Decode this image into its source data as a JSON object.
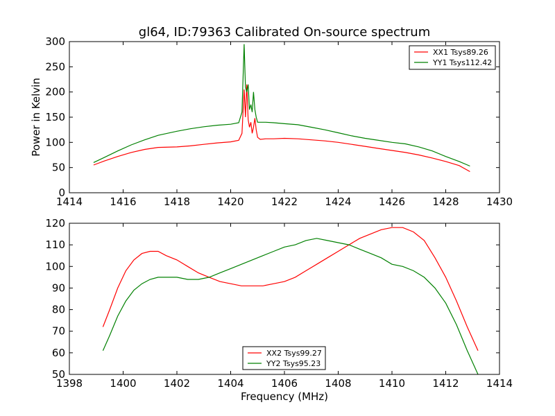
{
  "chart_data": [
    {
      "type": "line",
      "title": "gl64, ID:79363 Calibrated On-source spectrum",
      "xlabel": "",
      "ylabel": "Power in Kelvin",
      "xlim": [
        1414,
        1430
      ],
      "ylim": [
        0,
        300
      ],
      "xticks": [
        "1414",
        "1416",
        "1418",
        "1420",
        "1422",
        "1424",
        "1426",
        "1428",
        "1430"
      ],
      "yticks": [
        "0",
        "50",
        "100",
        "150",
        "200",
        "250",
        "300"
      ],
      "grid": false,
      "legend_position": "top-right",
      "series": [
        {
          "name": "XX1 Tsys89.26",
          "color": "#ff0000",
          "x": [
            1414.9,
            1415.3,
            1415.8,
            1416.3,
            1416.8,
            1417.3,
            1418.0,
            1418.5,
            1419.0,
            1419.5,
            1420.0,
            1420.3,
            1420.42,
            1420.5,
            1420.55,
            1420.6,
            1420.65,
            1420.7,
            1420.75,
            1420.8,
            1420.85,
            1420.9,
            1420.95,
            1421.0,
            1421.1,
            1421.3,
            1421.6,
            1422.0,
            1422.5,
            1423.0,
            1423.5,
            1424.0,
            1424.5,
            1425.0,
            1425.5,
            1426.0,
            1426.5,
            1427.0,
            1427.5,
            1428.0,
            1428.5,
            1428.9
          ],
          "y": [
            55,
            63,
            72,
            80,
            86,
            90,
            91,
            93,
            96,
            99,
            101,
            104,
            118,
            205,
            150,
            215,
            145,
            130,
            140,
            118,
            130,
            148,
            125,
            110,
            106,
            107,
            107,
            108,
            107,
            105,
            103,
            100,
            96,
            92,
            88,
            84,
            80,
            75,
            69,
            62,
            54,
            42
          ]
        },
        {
          "name": "YY1 Tsys112.42",
          "color": "#008000",
          "x": [
            1414.9,
            1415.3,
            1415.8,
            1416.3,
            1416.8,
            1417.3,
            1418.0,
            1418.5,
            1419.0,
            1419.5,
            1420.0,
            1420.3,
            1420.42,
            1420.5,
            1420.55,
            1420.6,
            1420.65,
            1420.7,
            1420.75,
            1420.8,
            1420.85,
            1420.9,
            1420.95,
            1421.0,
            1421.1,
            1421.3,
            1421.6,
            1422.0,
            1422.5,
            1423.0,
            1423.5,
            1424.0,
            1424.5,
            1425.0,
            1425.5,
            1426.0,
            1426.5,
            1427.0,
            1427.5,
            1428.0,
            1428.5,
            1428.9
          ],
          "y": [
            60,
            70,
            83,
            95,
            105,
            114,
            122,
            127,
            131,
            134,
            136,
            139,
            160,
            295,
            210,
            200,
            215,
            165,
            175,
            160,
            200,
            165,
            150,
            140,
            140,
            140,
            139,
            137,
            135,
            130,
            125,
            119,
            113,
            108,
            104,
            100,
            97,
            91,
            83,
            72,
            62,
            53
          ]
        }
      ]
    },
    {
      "type": "line",
      "title": "",
      "xlabel": "Frequency (MHz)",
      "ylabel": "",
      "xlim": [
        1398,
        1414
      ],
      "ylim": [
        50,
        120
      ],
      "xticks": [
        "1398",
        "1400",
        "1402",
        "1404",
        "1406",
        "1408",
        "1410",
        "1412",
        "1414"
      ],
      "yticks": [
        "50",
        "60",
        "70",
        "80",
        "90",
        "100",
        "110",
        "120"
      ],
      "grid": false,
      "legend_position": "bottom-center",
      "series": [
        {
          "name": "XX2 Tsys99.27",
          "color": "#ff0000",
          "x": [
            1399.25,
            1399.5,
            1399.8,
            1400.1,
            1400.4,
            1400.7,
            1401.0,
            1401.3,
            1401.6,
            1402.0,
            1402.4,
            1402.8,
            1403.2,
            1403.6,
            1404.0,
            1404.4,
            1404.8,
            1405.2,
            1405.6,
            1406.0,
            1406.4,
            1406.8,
            1407.2,
            1407.6,
            1408.0,
            1408.4,
            1408.8,
            1409.2,
            1409.6,
            1410.0,
            1410.4,
            1410.8,
            1411.2,
            1411.6,
            1412.0,
            1412.4,
            1412.8,
            1413.2
          ],
          "y": [
            72,
            80,
            90,
            98,
            103,
            106,
            107,
            107,
            105,
            103,
            100,
            97,
            95,
            93,
            92,
            91,
            91,
            91,
            92,
            93,
            95,
            98,
            101,
            104,
            107,
            110,
            113,
            115,
            117,
            118,
            118,
            116,
            112,
            104,
            95,
            84,
            72,
            61
          ]
        },
        {
          "name": "YY2 Tsys95.23",
          "color": "#008000",
          "x": [
            1399.25,
            1399.5,
            1399.8,
            1400.1,
            1400.4,
            1400.7,
            1401.0,
            1401.3,
            1401.6,
            1402.0,
            1402.4,
            1402.8,
            1403.2,
            1403.6,
            1404.0,
            1404.4,
            1404.8,
            1405.2,
            1405.6,
            1406.0,
            1406.4,
            1406.8,
            1407.2,
            1407.6,
            1408.0,
            1408.4,
            1408.8,
            1409.2,
            1409.6,
            1410.0,
            1410.4,
            1410.8,
            1411.2,
            1411.6,
            1412.0,
            1412.4,
            1412.8,
            1413.2
          ],
          "y": [
            61,
            68,
            77,
            84,
            89,
            92,
            94,
            95,
            95,
            95,
            94,
            94,
            95,
            97,
            99,
            101,
            103,
            105,
            107,
            109,
            110,
            112,
            113,
            112,
            111,
            110,
            108,
            106,
            104,
            101,
            100,
            98,
            95,
            90,
            83,
            73,
            61,
            50
          ]
        }
      ]
    }
  ]
}
